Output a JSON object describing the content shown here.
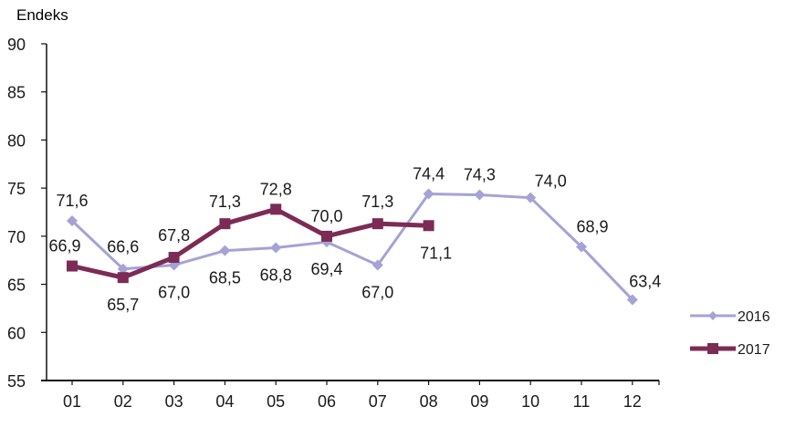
{
  "chart_data": {
    "type": "line",
    "title": "",
    "ylabel": "Endeks",
    "xlabel": "",
    "categories": [
      "01",
      "02",
      "03",
      "04",
      "05",
      "06",
      "07",
      "08",
      "09",
      "10",
      "11",
      "12"
    ],
    "ylim": [
      55,
      90
    ],
    "yticks": [
      55,
      60,
      65,
      70,
      75,
      80,
      85,
      90
    ],
    "grid": false,
    "legend_position": "right",
    "series": [
      {
        "name": "2016",
        "color": "#a5a2d6",
        "marker": "diamond",
        "values": [
          71.6,
          66.6,
          67.0,
          68.5,
          68.8,
          69.4,
          67.0,
          74.4,
          74.3,
          74.0,
          68.9,
          63.4
        ],
        "labels": [
          "71,6",
          "66,6",
          "67,0",
          "68,5",
          "68,8",
          "69,4",
          "67,0",
          "74,4",
          "74,3",
          "74,0",
          "68,9",
          "63,4"
        ]
      },
      {
        "name": "2017",
        "color": "#7b2b55",
        "marker": "square",
        "values": [
          66.9,
          65.7,
          67.8,
          71.3,
          72.8,
          70.0,
          71.3,
          71.1
        ],
        "labels": [
          "66,9",
          "65,7",
          "67,8",
          "71,3",
          "72,8",
          "70,0",
          "71,3",
          "71,1"
        ]
      }
    ]
  }
}
